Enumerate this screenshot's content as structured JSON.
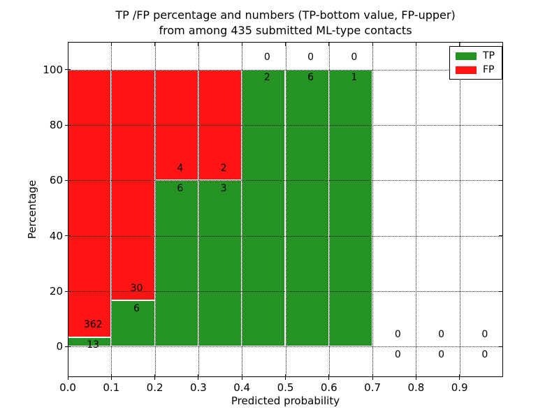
{
  "title": {
    "line1": "TP /FP percentage and numbers (TP-bottom value, FP-upper)",
    "line2": "from among 435 submitted ML-type contacts"
  },
  "axes": {
    "xlabel": "Predicted probability",
    "ylabel": "Percentage",
    "x_tick_labels": [
      "0.0",
      "0.1",
      "0.2",
      "0.3",
      "0.4",
      "0.5",
      "0.6",
      "0.7",
      "0.8",
      "0.9"
    ],
    "x_tick_values": [
      0.0,
      0.1,
      0.2,
      0.3,
      0.4,
      0.5,
      0.6,
      0.7,
      0.8,
      0.9
    ],
    "y_tick_labels": [
      "0",
      "20",
      "40",
      "60",
      "80",
      "100"
    ],
    "y_tick_values": [
      0,
      20,
      40,
      60,
      80,
      100
    ],
    "x_grid_values": [
      0.1,
      0.2,
      0.3,
      0.4,
      0.5,
      0.6,
      0.7,
      0.8,
      0.9
    ]
  },
  "legend": {
    "items": [
      {
        "label": "TP",
        "color": "#249324"
      },
      {
        "label": "FP",
        "color": "#FF1414"
      }
    ]
  },
  "colors": {
    "tp": "#249324",
    "fp": "#FF1414",
    "grid": "#222222",
    "bar_edge": "#FFFFFF"
  },
  "chart_data": {
    "type": "bar",
    "stacked": true,
    "title": "TP /FP percentage and numbers (TP-bottom value, FP-upper) from among 435 submitted ML-type contacts",
    "xlabel": "Predicted probability",
    "ylabel": "Percentage",
    "total_contacts": 435,
    "bin_width": 0.1,
    "bin_starts": [
      0.0,
      0.1,
      0.2,
      0.3,
      0.4,
      0.5,
      0.6,
      0.7,
      0.8,
      0.9
    ],
    "series": [
      {
        "name": "TP",
        "color": "#249324",
        "counts": [
          13,
          6,
          6,
          3,
          2,
          6,
          1,
          0,
          0,
          0
        ],
        "percentages": [
          3.47,
          16.67,
          60,
          60,
          100,
          100,
          100,
          0,
          0,
          0
        ]
      },
      {
        "name": "FP",
        "color": "#FF1414",
        "counts": [
          362,
          30,
          4,
          2,
          0,
          0,
          0,
          0,
          0,
          0
        ],
        "percentages": [
          96.53,
          83.33,
          40,
          40,
          0,
          0,
          0,
          0,
          0,
          0
        ]
      }
    ],
    "xlim": [
      0,
      1
    ],
    "ylim": [
      -11,
      110
    ],
    "grid": true,
    "grid_style": "dotted",
    "legend_position": "upper right",
    "annotation_note": "FP count shown above each bar's TP/FP boundary, TP count below"
  }
}
